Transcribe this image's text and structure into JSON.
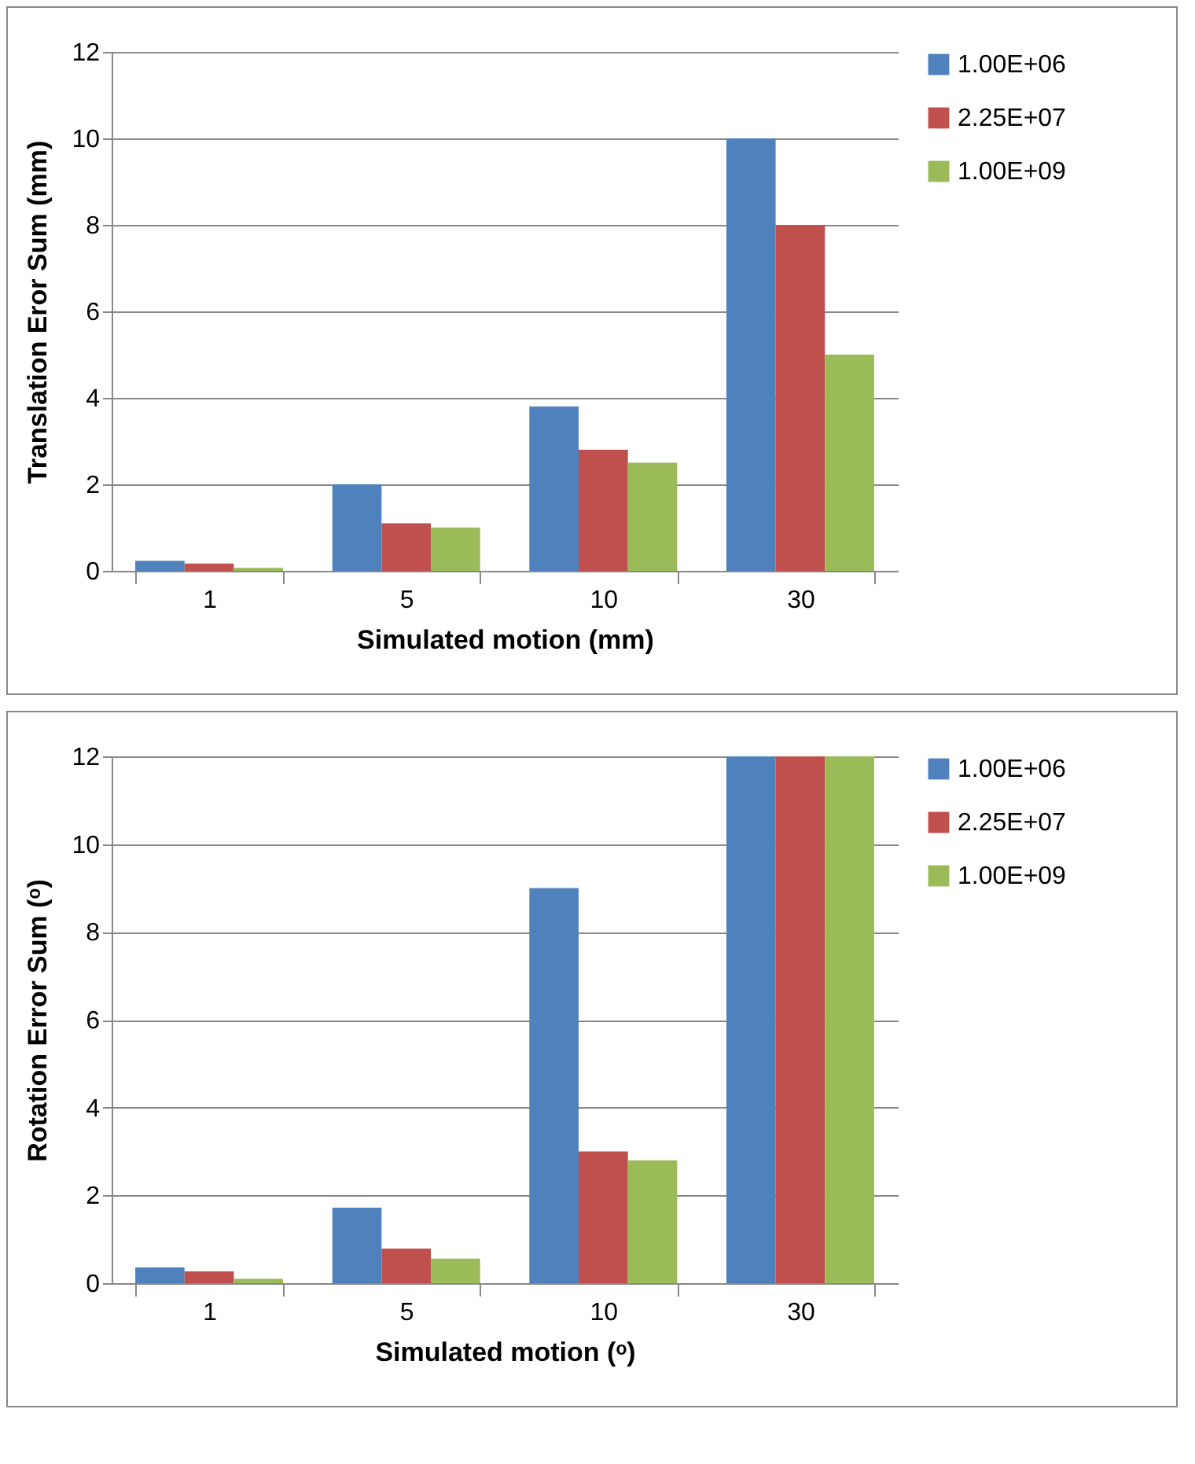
{
  "chart_data": [
    {
      "type": "bar",
      "xlabel": "Simulated motion (mm)",
      "ylabel": "Translation Eror Sum (mm)",
      "categories": [
        "1",
        "5",
        "10",
        "30"
      ],
      "ylim": [
        0,
        12
      ],
      "yticks": [
        0,
        2,
        4,
        6,
        8,
        10,
        12
      ],
      "grid": "y",
      "legend": "right",
      "series": [
        {
          "name": "1.00E+06",
          "color": "#4f81bd",
          "values": [
            0.23,
            2.0,
            3.8,
            10
          ]
        },
        {
          "name": "2.25E+07",
          "color": "#c0504d",
          "values": [
            0.17,
            1.1,
            2.8,
            8
          ]
        },
        {
          "name": "1.00E+09",
          "color": "#9bbb59",
          "values": [
            0.07,
            1.0,
            2.5,
            5
          ]
        }
      ]
    },
    {
      "type": "bar",
      "xlabel": "Simulated motion (ᵒ)",
      "ylabel": "Rotation Error Sum (ᵒ)",
      "categories": [
        "1",
        "5",
        "10",
        "30"
      ],
      "ylim": [
        0,
        12
      ],
      "yticks": [
        0,
        2,
        4,
        6,
        8,
        10,
        12
      ],
      "grid": "y",
      "legend": "right",
      "series": [
        {
          "name": "1.00E+06",
          "color": "#4f81bd",
          "values": [
            0.36,
            1.72,
            9,
            12
          ]
        },
        {
          "name": "2.25E+07",
          "color": "#c0504d",
          "values": [
            0.27,
            0.79,
            3.0,
            12
          ]
        },
        {
          "name": "1.00E+09",
          "color": "#9bbb59",
          "values": [
            0.1,
            0.56,
            2.8,
            12
          ]
        }
      ]
    }
  ]
}
